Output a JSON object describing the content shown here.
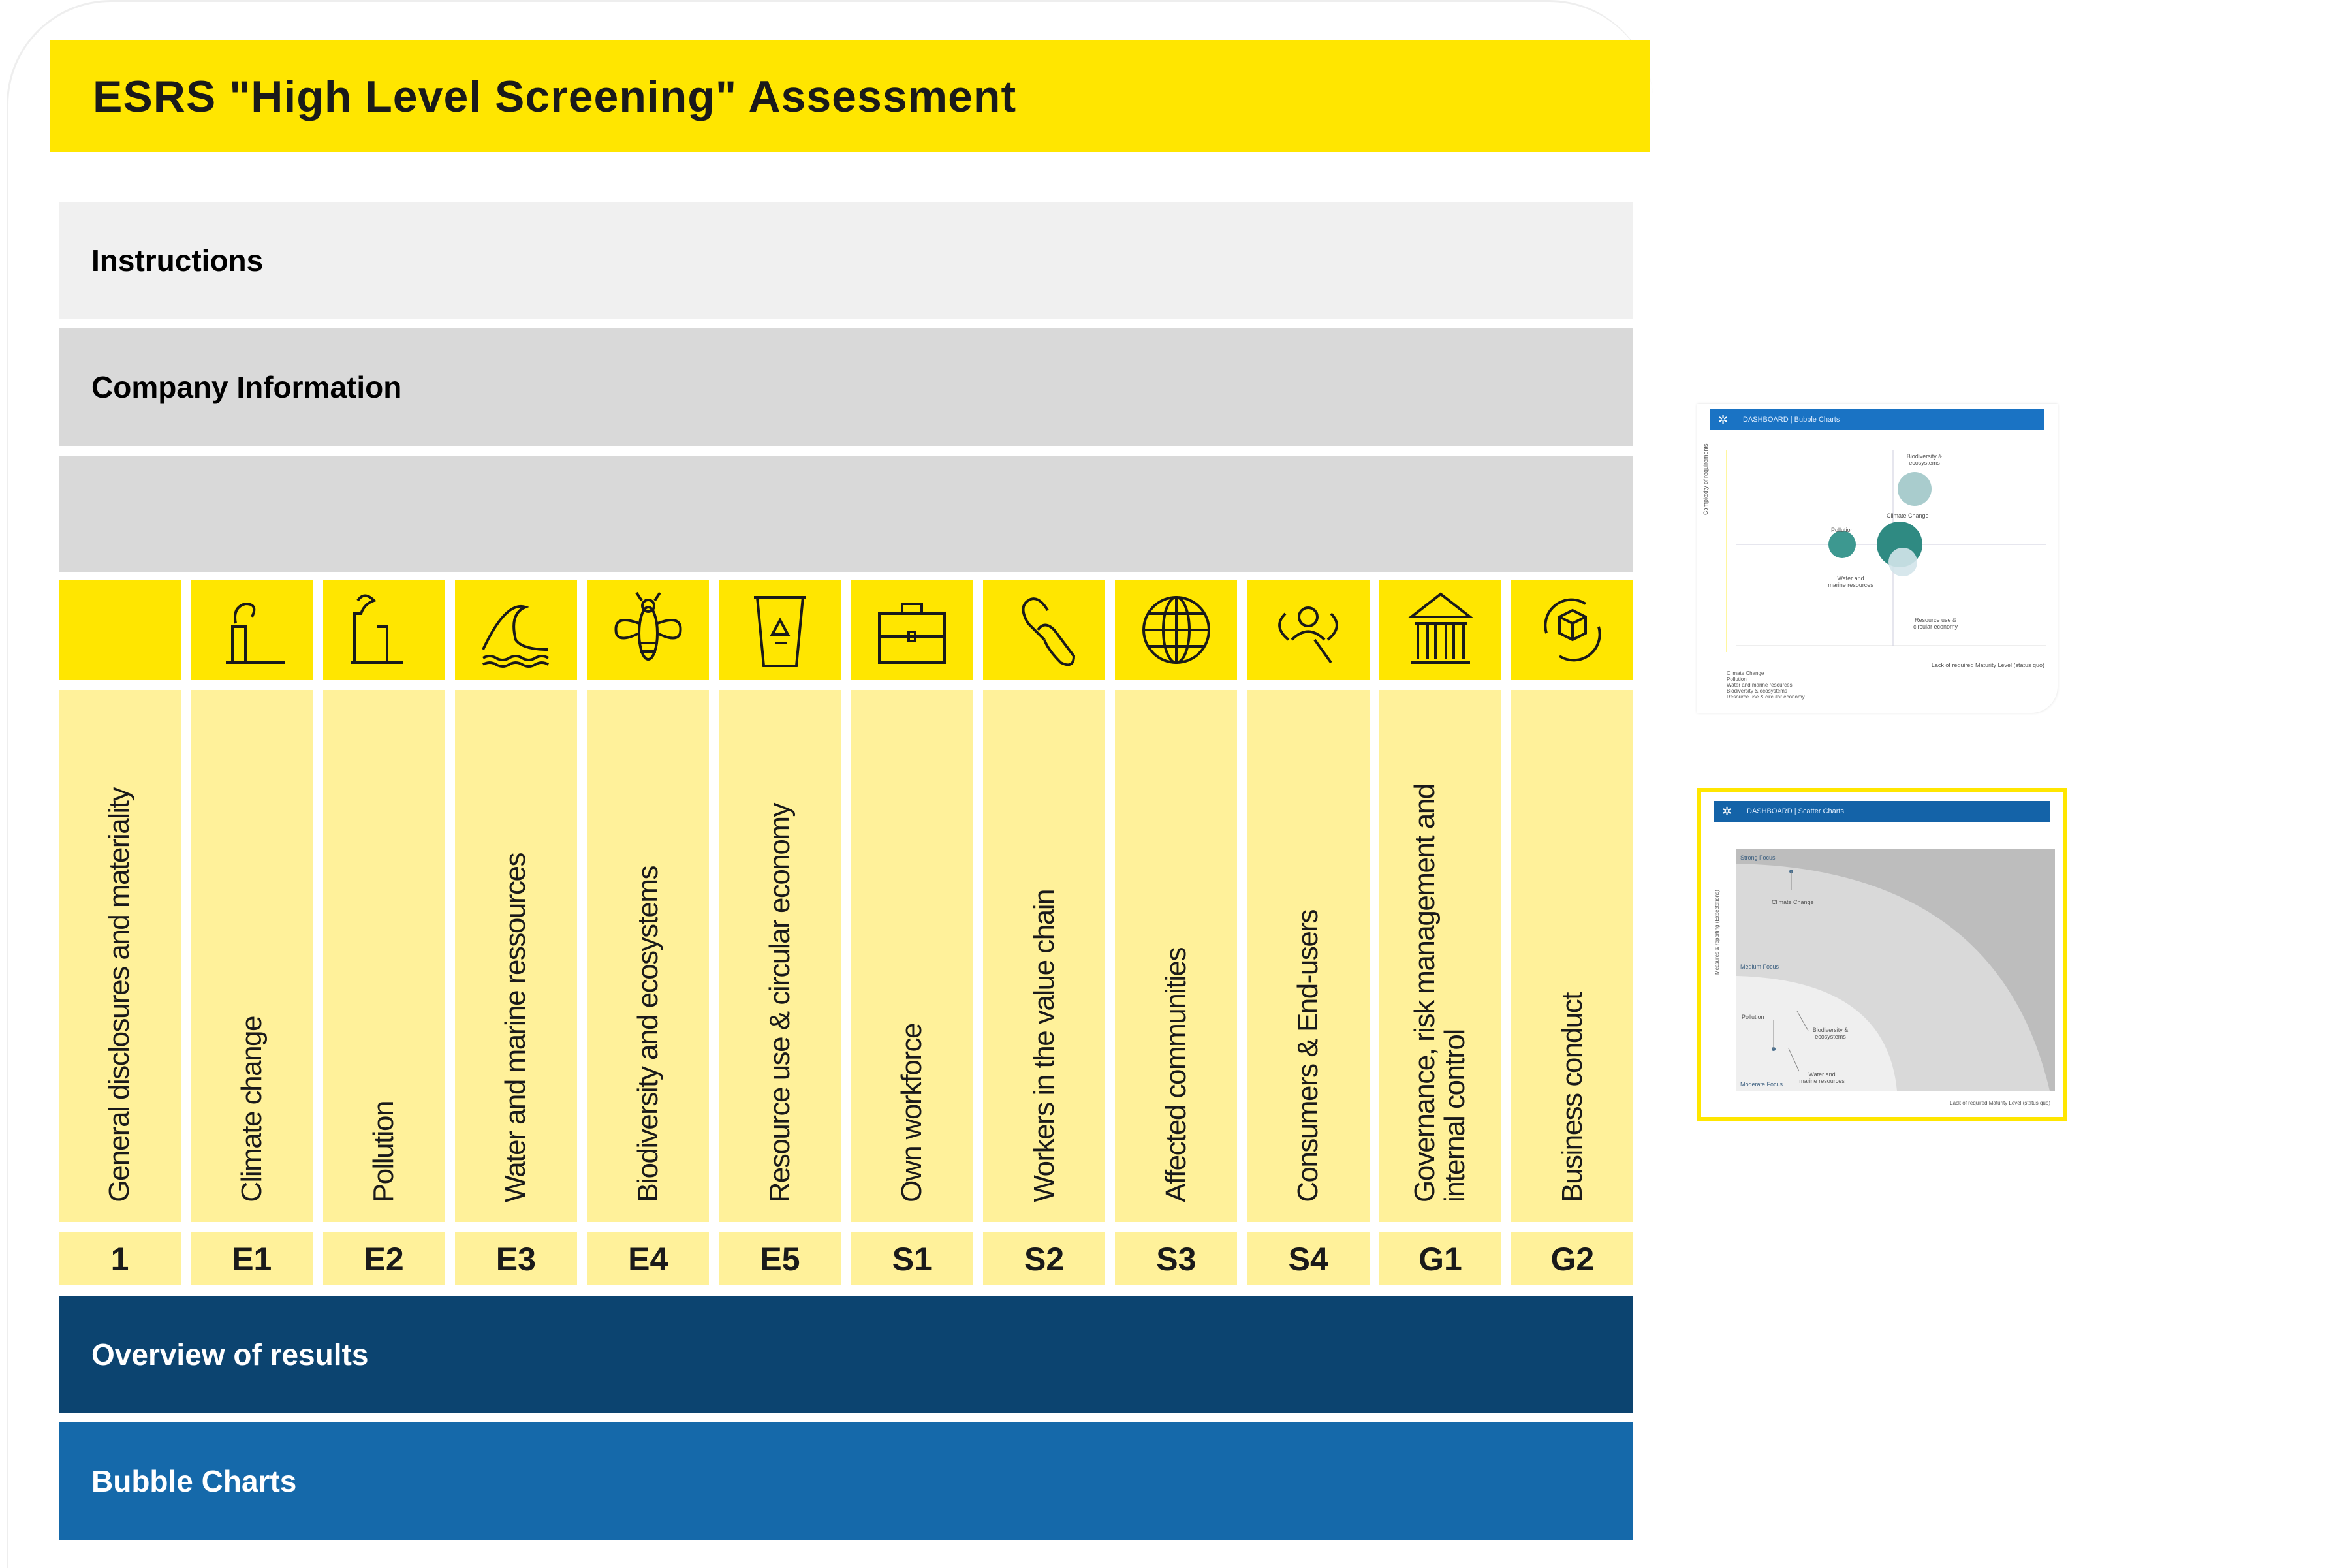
{
  "header": {
    "title": "ESRS \"High Level Screening\" Assessment"
  },
  "sections": {
    "instructions": "Instructions",
    "company_information": "Company Information",
    "overview_of_results": "Overview of results",
    "bubble_charts": "Bubble Charts"
  },
  "topics": [
    {
      "code": "1",
      "label": "General disclosures and materiality",
      "icon": "none"
    },
    {
      "code": "E1",
      "label": "Climate change",
      "icon": "factory-icon"
    },
    {
      "code": "E2",
      "label": "Pollution",
      "icon": "factory-smoke-icon"
    },
    {
      "code": "E3",
      "label": "Water and marine ressources",
      "icon": "wave-icon"
    },
    {
      "code": "E4",
      "label": "Biodiversity and ecosystems",
      "icon": "bee-icon"
    },
    {
      "code": "E5",
      "label": "Resource use & circular economy",
      "icon": "recycle-bin-icon"
    },
    {
      "code": "S1",
      "label": "Own workforce",
      "icon": "briefcase-icon"
    },
    {
      "code": "S2",
      "label": "Workers in the value chain",
      "icon": "chain-link-icon"
    },
    {
      "code": "S3",
      "label": "Affected communities",
      "icon": "globe-icon"
    },
    {
      "code": "S4",
      "label": "Consumers & End-users",
      "icon": "user-search-icon"
    },
    {
      "code": "G1",
      "label": "Governance, risk management and internal control",
      "icon": "institution-icon"
    },
    {
      "code": "G2",
      "label": "Business conduct",
      "icon": "box-cycle-icon"
    }
  ],
  "thumbnails": {
    "bubble": {
      "title": "DASHBOARD | Bubble Charts",
      "y_axis": "Complexity of requirements",
      "x_axis": "Lack of required Maturity Level (status quo)",
      "labels": [
        "Biodiversity & ecosystems",
        "Climate Change",
        "Pollution",
        "Water and marine resources",
        "Resource use & circular economy"
      ],
      "legend": [
        "Climate Change",
        "Pollution",
        "Water and marine resources",
        "Biodiversity & ecosystems",
        "Resource use & circular economy"
      ]
    },
    "scatter": {
      "title": "DASHBOARD | Scatter Charts",
      "y_axis": "Measures & reporting (Expectations)",
      "x_axis": "Lack of required Maturity Level (status quo)",
      "zones": [
        "Strong Focus",
        "Medium Focus",
        "Moderate Focus"
      ],
      "labels": [
        "Climate Change",
        "Pollution",
        "Biodiversity & ecosystems",
        "Water and marine resources"
      ]
    }
  },
  "colors": {
    "yellow": "#ffe600",
    "light_yellow": "#fff19a",
    "dark_blue": "#0c4470",
    "blue": "#1569aa",
    "light_gray": "#f0f0f0",
    "gray": "#d9d9d9"
  }
}
